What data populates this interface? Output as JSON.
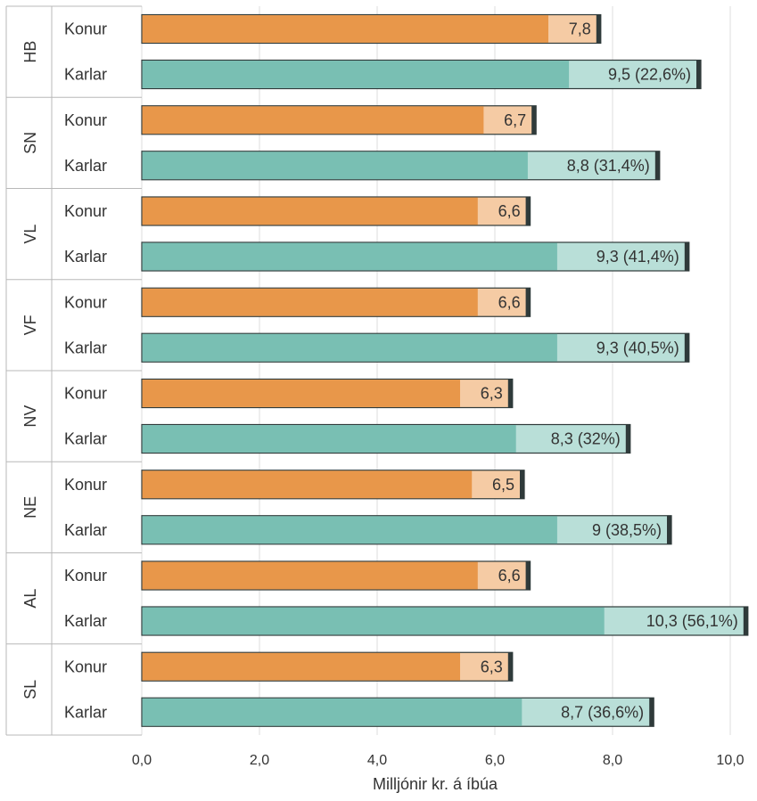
{
  "chart_data": {
    "type": "bar",
    "orientation": "horizontal",
    "title": "",
    "xlabel": "Milljónir kr. á íbúa",
    "ylabel": "",
    "xlim": [
      0,
      10.3
    ],
    "x_ticks": [
      "0,0",
      "2,0",
      "4,0",
      "6,0",
      "8,0",
      "10,0"
    ],
    "x_tick_values": [
      0,
      2,
      4,
      6,
      8,
      10
    ],
    "grid": true,
    "legend": "none",
    "colors": {
      "Konur": "#e8974a",
      "Karlar": "#79bfb3",
      "Konur_light": "#f5cba4",
      "Karlar_light": "#b9dfd8",
      "outline": "#2f3a3a"
    },
    "groups": [
      {
        "region": "HB",
        "bars": [
          {
            "category": "Konur",
            "value": 7.8,
            "inner": 6.9,
            "label": "7,8"
          },
          {
            "category": "Karlar",
            "value": 9.5,
            "inner": 7.25,
            "label": "9,5 (22,6%)"
          }
        ]
      },
      {
        "region": "SN",
        "bars": [
          {
            "category": "Konur",
            "value": 6.7,
            "inner": 5.8,
            "label": "6,7"
          },
          {
            "category": "Karlar",
            "value": 8.8,
            "inner": 6.55,
            "label": "8,8 (31,4%)"
          }
        ]
      },
      {
        "region": "VL",
        "bars": [
          {
            "category": "Konur",
            "value": 6.6,
            "inner": 5.7,
            "label": "6,6"
          },
          {
            "category": "Karlar",
            "value": 9.3,
            "inner": 7.05,
            "label": "9,3 (41,4%)"
          }
        ]
      },
      {
        "region": "VF",
        "bars": [
          {
            "category": "Konur",
            "value": 6.6,
            "inner": 5.7,
            "label": "6,6"
          },
          {
            "category": "Karlar",
            "value": 9.3,
            "inner": 7.05,
            "label": "9,3 (40,5%)"
          }
        ]
      },
      {
        "region": "NV",
        "bars": [
          {
            "category": "Konur",
            "value": 6.3,
            "inner": 5.4,
            "label": "6,3"
          },
          {
            "category": "Karlar",
            "value": 8.3,
            "inner": 6.35,
            "label": "8,3 (32%)"
          }
        ]
      },
      {
        "region": "NE",
        "bars": [
          {
            "category": "Konur",
            "value": 6.5,
            "inner": 5.6,
            "label": "6,5"
          },
          {
            "category": "Karlar",
            "value": 9.0,
            "inner": 7.05,
            "label": "9 (38,5%)"
          }
        ]
      },
      {
        "region": "AL",
        "bars": [
          {
            "category": "Konur",
            "value": 6.6,
            "inner": 5.7,
            "label": "6,6"
          },
          {
            "category": "Karlar",
            "value": 10.3,
            "inner": 7.85,
            "label": "10,3 (56,1%)"
          }
        ]
      },
      {
        "region": "SL",
        "bars": [
          {
            "category": "Konur",
            "value": 6.3,
            "inner": 5.4,
            "label": "6,3"
          },
          {
            "category": "Karlar",
            "value": 8.7,
            "inner": 6.45,
            "label": "8,7 (36,6%)"
          }
        ]
      }
    ]
  }
}
